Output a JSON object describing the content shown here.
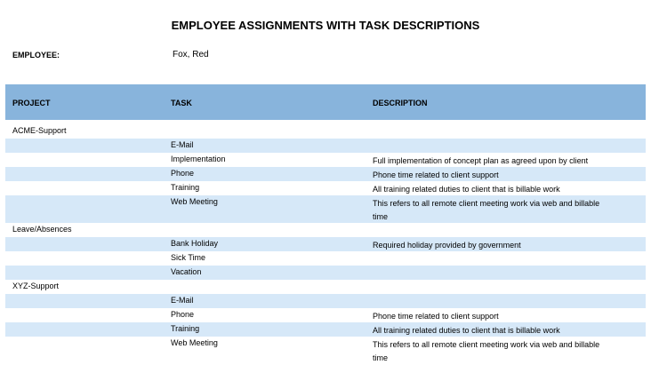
{
  "title": "EMPLOYEE ASSIGNMENTS WITH TASK  DESCRIPTIONS",
  "employee": {
    "label": "EMPLOYEE:",
    "value": "Fox, Red"
  },
  "columns": [
    "PROJECT",
    "TASK",
    "DESCRIPTION"
  ],
  "colors": {
    "header": "#88b4dc",
    "stripe": "#d6e8f8"
  },
  "rows": [
    {
      "project": "ACME-Support",
      "task": "",
      "description": ""
    },
    {
      "project": "",
      "task": "E-Mail",
      "description": ""
    },
    {
      "project": "",
      "task": "Implementation",
      "description": "Full implementation of concept plan as agreed upon by client"
    },
    {
      "project": "",
      "task": "Phone",
      "description": "Phone time related to client support"
    },
    {
      "project": "",
      "task": "Training",
      "description": "All training related duties to client that is billable work"
    },
    {
      "project": "",
      "task": "Web Meeting",
      "description": "This refers to all remote client meeting work via web and billable time"
    },
    {
      "project": "Leave/Absences",
      "task": "",
      "description": ""
    },
    {
      "project": "",
      "task": "Bank Holiday",
      "description": "Required holiday provided by government"
    },
    {
      "project": "",
      "task": "Sick Time",
      "description": ""
    },
    {
      "project": "",
      "task": "Vacation",
      "description": ""
    },
    {
      "project": "XYZ-Support",
      "task": "",
      "description": ""
    },
    {
      "project": "",
      "task": "E-Mail",
      "description": ""
    },
    {
      "project": "",
      "task": "Phone",
      "description": "Phone time related to client support"
    },
    {
      "project": "",
      "task": "Training",
      "description": "All training related duties to client that is billable work"
    },
    {
      "project": "",
      "task": "Web Meeting",
      "description": "This refers to all remote client meeting work via web and billable time"
    }
  ]
}
